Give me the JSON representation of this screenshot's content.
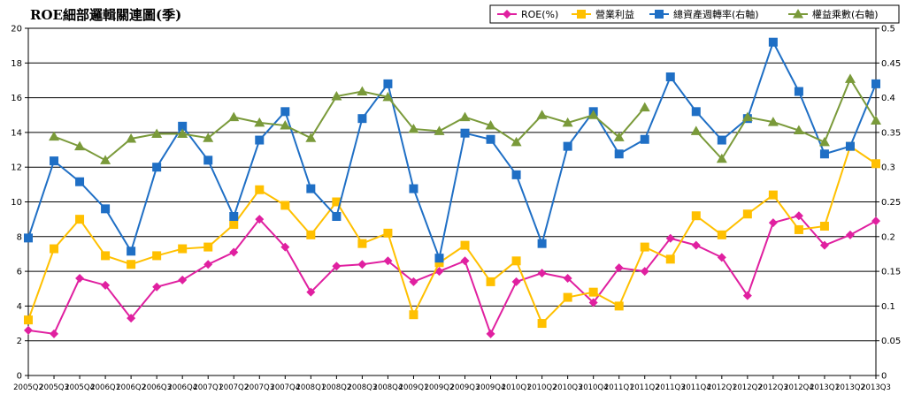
{
  "chart_data": {
    "type": "line",
    "title": "ROE細部邏輯關連圖(季)",
    "categories": [
      "2005Q2",
      "2005Q3",
      "2005Q4",
      "2006Q1",
      "2006Q2",
      "2006Q3",
      "2006Q4",
      "2007Q1",
      "2007Q2",
      "2007Q3",
      "2007Q4",
      "2008Q1",
      "2008Q2",
      "2008Q3",
      "2008Q4",
      "2009Q1",
      "2009Q2",
      "2009Q3",
      "2009Q4",
      "2010Q1",
      "2010Q2",
      "2010Q3",
      "2010Q4",
      "2011Q1",
      "2011Q2",
      "2011Q3",
      "2011Q4",
      "2012Q1",
      "2012Q2",
      "2012Q3",
      "2012Q4",
      "2013Q1",
      "2013Q2",
      "2013Q3"
    ],
    "y_left": {
      "min": 0,
      "max": 20,
      "ticks": [
        "0",
        "2",
        "4",
        "6",
        "8",
        "10",
        "12",
        "14",
        "16",
        "18",
        "20"
      ]
    },
    "y_right": {
      "min": 0,
      "max": 0.5,
      "ticks": [
        "0",
        "0.05",
        "0.1",
        "0.15",
        "0.2",
        "0.25",
        "0.3",
        "0.35",
        "0.4",
        "0.45",
        "0.5"
      ]
    },
    "grid": true,
    "legend_position": "top-right",
    "series": [
      {
        "name": "ROE(%)",
        "axis": "left",
        "color": "#E020A0",
        "marker": "diamond",
        "values": [
          2.6,
          2.4,
          5.6,
          5.2,
          3.3,
          5.1,
          5.5,
          6.4,
          7.1,
          9.0,
          7.4,
          4.8,
          6.3,
          6.4,
          6.6,
          5.4,
          6.0,
          6.6,
          2.4,
          5.4,
          5.9,
          5.6,
          4.2,
          6.2,
          6.0,
          7.9,
          7.5,
          6.8,
          4.6,
          8.8,
          9.2,
          7.5,
          8.1,
          8.9
        ]
      },
      {
        "name": "營業利益",
        "axis": "left",
        "color": "#FFC000",
        "marker": "square",
        "values": [
          3.2,
          7.3,
          9.0,
          6.9,
          6.4,
          6.9,
          7.3,
          7.4,
          8.7,
          10.7,
          9.8,
          8.1,
          10.0,
          7.6,
          8.2,
          3.5,
          6.5,
          7.5,
          5.4,
          6.6,
          3.0,
          4.5,
          4.8,
          4.0,
          7.4,
          6.7,
          9.2,
          8.1,
          9.3,
          10.4,
          8.4,
          8.6,
          13.2,
          12.2
        ]
      },
      {
        "name": "總資產週轉率(右軸)",
        "axis": "right",
        "color": "#1F6FC5",
        "marker": "square",
        "values": [
          0.198,
          0.309,
          0.279,
          0.24,
          0.179,
          0.3,
          0.359,
          0.31,
          0.229,
          0.339,
          0.38,
          0.269,
          0.229,
          0.37,
          0.42,
          0.269,
          0.169,
          0.349,
          0.34,
          0.289,
          0.19,
          0.33,
          0.38,
          0.319,
          0.34,
          0.43,
          0.38,
          0.339,
          0.37,
          0.48,
          0.409,
          0.319,
          0.33,
          0.42
        ]
      },
      {
        "name": "權益乘數(右軸)",
        "axis": "right",
        "color": "#7A9A3A",
        "marker": "triangle",
        "values": [
          null,
          0.344,
          0.33,
          0.31,
          0.341,
          0.348,
          0.348,
          0.342,
          0.372,
          0.364,
          0.36,
          0.342,
          0.402,
          0.409,
          0.401,
          0.355,
          0.352,
          0.372,
          0.36,
          0.336,
          0.375,
          0.364,
          0.375,
          0.343,
          0.386,
          null,
          0.352,
          0.312,
          0.372,
          0.365,
          0.353,
          0.336,
          0.427,
          0.367
        ]
      }
    ]
  }
}
